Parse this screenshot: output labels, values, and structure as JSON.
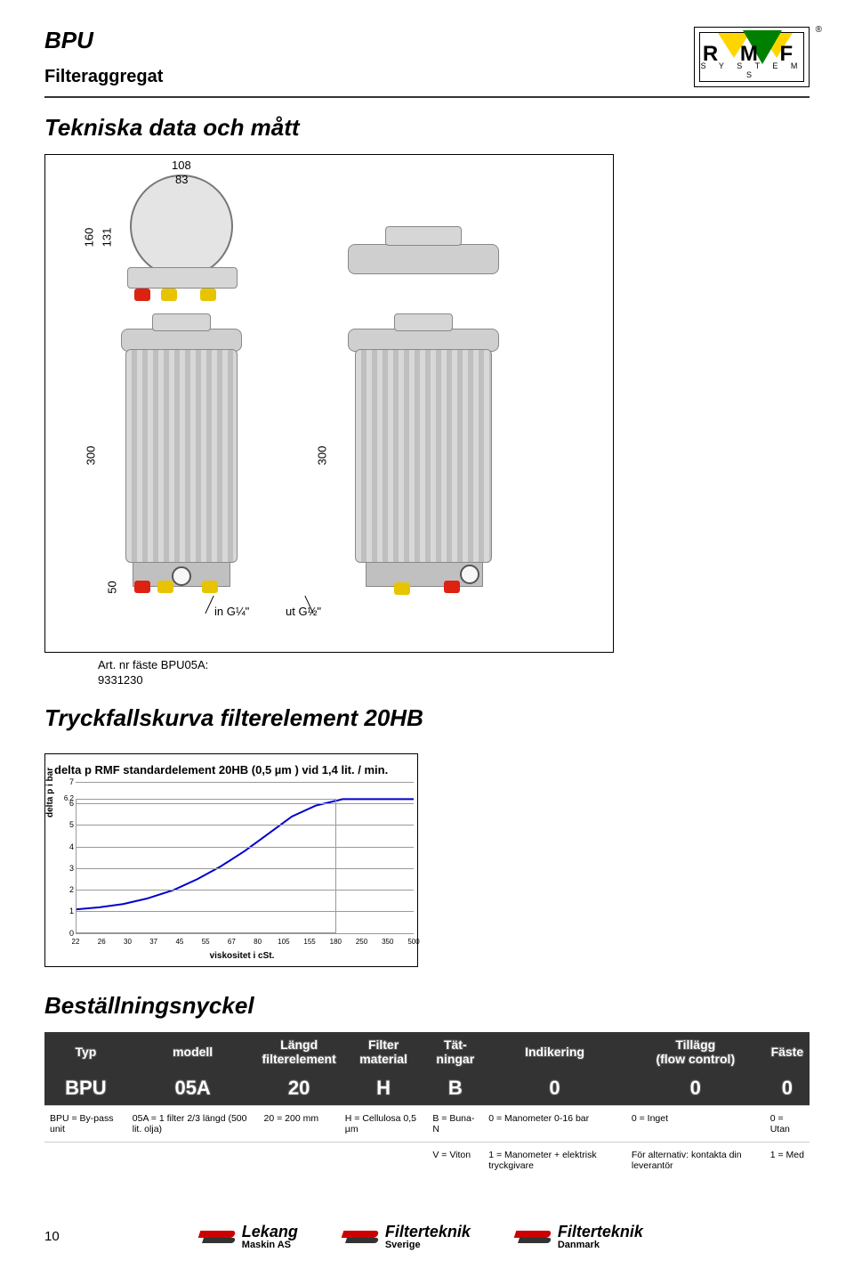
{
  "header": {
    "title": "BPU",
    "subtitle": "Filteraggregat",
    "reg": "®",
    "logo_main": "R M F",
    "logo_sub": "S Y S T E M S"
  },
  "section1_title": "Tekniska data och mått",
  "dims": {
    "d108": "108",
    "d83": "83",
    "d160": "160",
    "d131": "131",
    "d300a": "300",
    "d300b": "300",
    "d50": "50",
    "port_in": "in G¼\"",
    "port_out": "ut G½\""
  },
  "art_label_1": "Art. nr fäste BPU05A:",
  "art_label_2": "9331230",
  "section2_title": "Tryckfallskurva filterelement 20HB",
  "chart": {
    "title": "delta p  RMF standardelement 20HB (0,5 µm ) vid 1,4 lit. / min.",
    "ylabel": "delta p  i bar",
    "xlabel": "viskositet i cSt.",
    "ylim": [
      0,
      7
    ],
    "yticks": [
      0,
      1,
      2,
      3,
      4,
      5,
      6,
      7
    ],
    "extra_ytick": 6.2,
    "xticks": [
      "22",
      "26",
      "30",
      "37",
      "45",
      "55",
      "67",
      "80",
      "105",
      "155",
      "180",
      "250",
      "350",
      "500"
    ],
    "points": [
      {
        "x": 0.0,
        "y": 1.1
      },
      {
        "x": 0.07,
        "y": 1.2
      },
      {
        "x": 0.14,
        "y": 1.35
      },
      {
        "x": 0.21,
        "y": 1.6
      },
      {
        "x": 0.29,
        "y": 2.0
      },
      {
        "x": 0.36,
        "y": 2.5
      },
      {
        "x": 0.43,
        "y": 3.1
      },
      {
        "x": 0.5,
        "y": 3.8
      },
      {
        "x": 0.57,
        "y": 4.6
      },
      {
        "x": 0.64,
        "y": 5.4
      },
      {
        "x": 0.71,
        "y": 5.9
      },
      {
        "x": 0.79,
        "y": 6.2
      },
      {
        "x": 0.86,
        "y": 6.2
      },
      {
        "x": 0.93,
        "y": 6.2
      },
      {
        "x": 1.0,
        "y": 6.2
      }
    ],
    "line_color": "#0000cc",
    "grid_color": "#999999"
  },
  "section3_title": "Beställningsnyckel",
  "key": {
    "headers": [
      "Typ",
      "modell",
      "Längd filterelement",
      "Filter material",
      "Tät-ningar",
      "Indikering",
      "Tillägg (flow control)",
      "Fäste"
    ],
    "big": [
      "BPU",
      "05A",
      "20",
      "H",
      "B",
      "0",
      "0",
      "0"
    ],
    "rows": [
      [
        "BPU = By-pass unit",
        "05A = 1 filter 2/3 längd (500 lit. olja)",
        "20 = 200 mm",
        "H = Cellulosa 0,5 µm",
        "B = Buna-N",
        "0 = Manometer 0-16 bar",
        "0 = Inget",
        "0 = Utan"
      ],
      [
        "",
        "",
        "",
        "",
        "V = Viton",
        "1 = Manometer + elektrisk tryckgivare",
        "För alternativ: kontakta din leverantör",
        "1 = Med"
      ]
    ]
  },
  "footer": {
    "page": "10",
    "logos": [
      {
        "name": "Lekang",
        "sub": "Maskin AS"
      },
      {
        "name": "Filterteknik",
        "sub": "Sverige"
      },
      {
        "name": "Filterteknik",
        "sub": "Danmark"
      }
    ]
  }
}
